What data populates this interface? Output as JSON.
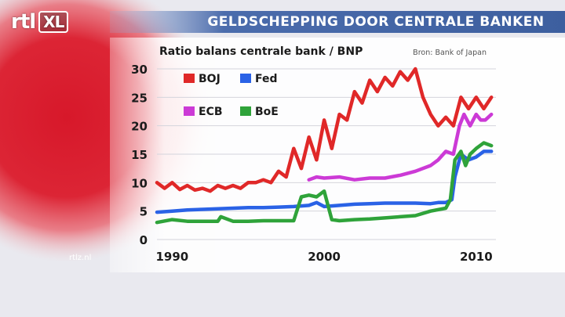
{
  "brand": {
    "logo_main": "rtl",
    "logo_xl": "XL",
    "site": "rtlz.nl"
  },
  "header": {
    "title": "GELDSCHEPPING DOOR CENTRALE BANKEN"
  },
  "chart_data": {
    "type": "line",
    "title": "Ratio balans centrale bank / BNP",
    "source": "Bron: Bank of Japan",
    "xlabel": "",
    "ylabel": "",
    "xlim": [
      1989,
      2011.3
    ],
    "ylim": [
      0,
      30
    ],
    "x_ticks": [
      1990,
      2000,
      2010
    ],
    "y_ticks": [
      0,
      5,
      10,
      15,
      20,
      25,
      30
    ],
    "grid": true,
    "legend": "top-left",
    "series": [
      {
        "name": "BOJ",
        "color": "#e02828",
        "x": [
          1989.0,
          1989.5,
          1990.0,
          1990.5,
          1991.0,
          1991.5,
          1992.0,
          1992.5,
          1993.0,
          1993.5,
          1994.0,
          1994.5,
          1995.0,
          1995.5,
          1996.0,
          1996.5,
          1997.0,
          1997.5,
          1998.0,
          1998.5,
          1999.0,
          1999.5,
          2000.0,
          2000.5,
          2001.0,
          2001.5,
          2002.0,
          2002.5,
          2003.0,
          2003.5,
          2004.0,
          2004.5,
          2005.0,
          2005.5,
          2006.0,
          2006.5,
          2007.0,
          2007.5,
          2008.0,
          2008.5,
          2009.0,
          2009.5,
          2010.0,
          2010.5,
          2011.0
        ],
        "values": [
          10,
          9,
          10,
          8.8,
          9.5,
          8.7,
          9,
          8.5,
          9.5,
          9,
          9.5,
          9,
          10,
          10,
          10.5,
          10,
          12,
          11,
          16,
          12.5,
          18,
          14,
          21,
          16,
          22,
          21,
          26,
          24,
          28,
          26,
          28.5,
          27,
          29.5,
          28,
          30,
          25,
          22,
          20,
          21.5,
          20,
          25,
          23,
          25,
          23,
          25
        ]
      },
      {
        "name": "Fed",
        "color": "#2a62e6",
        "x": [
          1989.0,
          1990.0,
          1991.0,
          1992.0,
          1993.0,
          1994.0,
          1995.0,
          1996.0,
          1997.0,
          1998.0,
          1999.0,
          1999.5,
          2000.0,
          2001.0,
          2002.0,
          2003.0,
          2004.0,
          2005.0,
          2006.0,
          2007.0,
          2007.5,
          2008.0,
          2008.4,
          2008.6,
          2009.0,
          2009.5,
          2010.0,
          2010.5,
          2011.0
        ],
        "values": [
          4.8,
          5,
          5.2,
          5.3,
          5.4,
          5.5,
          5.6,
          5.6,
          5.7,
          5.8,
          6,
          6.5,
          5.8,
          6,
          6.2,
          6.3,
          6.4,
          6.4,
          6.4,
          6.3,
          6.5,
          6.5,
          7,
          11,
          15,
          14,
          14.5,
          15.5,
          15.5
        ]
      },
      {
        "name": "ECB",
        "color": "#cc3ad6",
        "x": [
          1999.0,
          1999.5,
          2000.0,
          2001.0,
          2002.0,
          2003.0,
          2004.0,
          2005.0,
          2006.0,
          2007.0,
          2007.5,
          2008.0,
          2008.5,
          2008.9,
          2009.2,
          2009.6,
          2010.0,
          2010.3,
          2010.6,
          2011.0
        ],
        "values": [
          10.5,
          11,
          10.8,
          11,
          10.5,
          10.8,
          10.8,
          11.3,
          12,
          13,
          14,
          15.5,
          15,
          20,
          22,
          20,
          22,
          21,
          21,
          22
        ]
      },
      {
        "name": "BoE",
        "color": "#2fa33a",
        "x": [
          1989.0,
          1990.0,
          1991.0,
          1992.0,
          1993.0,
          1993.2,
          1994.0,
          1995.0,
          1996.0,
          1997.0,
          1998.0,
          1998.5,
          1999.0,
          1999.5,
          2000.0,
          2000.5,
          2001.0,
          2002.0,
          2003.0,
          2004.0,
          2005.0,
          2006.0,
          2007.0,
          2008.0,
          2008.3,
          2008.6,
          2009.0,
          2009.3,
          2009.6,
          2010.0,
          2010.5,
          2011.0
        ],
        "values": [
          3,
          3.5,
          3.2,
          3.2,
          3.2,
          4,
          3.2,
          3.2,
          3.3,
          3.3,
          3.3,
          7.5,
          7.8,
          7.5,
          8.5,
          3.5,
          3.3,
          3.5,
          3.6,
          3.8,
          4,
          4.2,
          5,
          5.5,
          7,
          14,
          15.5,
          13,
          15,
          16,
          17,
          16.5
        ]
      }
    ]
  }
}
